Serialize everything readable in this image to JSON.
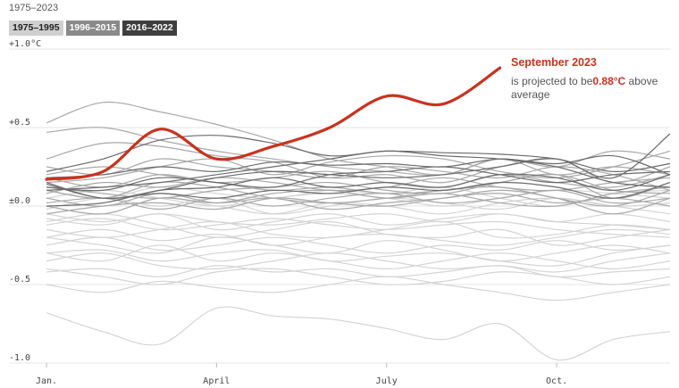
{
  "header": {
    "range_label": "1975–2023"
  },
  "legend": [
    {
      "label": "1975–1995",
      "bg": "#cfcfcf",
      "fg": "#222222"
    },
    {
      "label": "1996–2015",
      "bg": "#8a8a8a",
      "fg": "#ffffff"
    },
    {
      "label": "2016–2022",
      "bg": "#3e3e3e",
      "fg": "#ffffff"
    }
  ],
  "annotation": {
    "title": "September 2023",
    "line1_prefix": "is projected to be",
    "value": "0.88°C",
    "line1_suffix": " above",
    "line2": "average"
  },
  "colors": {
    "highlight": "#c8331f",
    "era1": "#d4d4d4",
    "era2": "#a8a8a8",
    "era3": "#6a6a6a",
    "grid": "#e6e6e6"
  },
  "chart_data": {
    "type": "line",
    "title": "",
    "xlabel": "",
    "ylabel": "",
    "x_ticks": [
      {
        "label": "Jan.",
        "month": 0
      },
      {
        "label": "April",
        "month": 3
      },
      {
        "label": "July",
        "month": 6
      },
      {
        "label": "Oct.",
        "month": 9
      }
    ],
    "y_ticks": [
      {
        "label": "+1.0°C",
        "value": 1.0
      },
      {
        "label": "+0.5",
        "value": 0.5
      },
      {
        "label": "±0.0",
        "value": 0.0
      },
      {
        "label": "-0.5",
        "value": -0.5
      },
      {
        "label": "-1.0",
        "value": -1.0
      }
    ],
    "xlim": [
      0,
      11
    ],
    "ylim": [
      -1.0,
      1.0
    ],
    "grid": true,
    "highlight_series": {
      "name": "2023",
      "values": [
        0.17,
        0.22,
        0.49,
        0.3,
        0.38,
        0.5,
        0.7,
        0.65,
        0.88
      ]
    },
    "series": [
      {
        "group": 3,
        "values": [
          0.22,
          0.3,
          0.42,
          0.45,
          0.4,
          0.32,
          0.35,
          0.34,
          0.33,
          0.3,
          0.22,
          0.27
        ]
      },
      {
        "group": 3,
        "values": [
          0.18,
          0.2,
          0.25,
          0.22,
          0.28,
          0.26,
          0.27,
          0.25,
          0.3,
          0.27,
          0.32,
          0.2
        ]
      },
      {
        "group": 3,
        "values": [
          0.15,
          0.05,
          0.1,
          0.18,
          0.22,
          0.2,
          0.18,
          0.2,
          0.25,
          0.3,
          0.18,
          0.46
        ]
      },
      {
        "group": 3,
        "values": [
          0.0,
          0.02,
          0.1,
          0.12,
          0.18,
          0.12,
          0.15,
          0.12,
          0.2,
          0.18,
          0.1,
          0.2
        ]
      },
      {
        "group": 3,
        "values": [
          0.1,
          0.12,
          0.15,
          0.2,
          0.25,
          0.3,
          0.35,
          0.32,
          0.3,
          0.25,
          0.15,
          0.12
        ]
      },
      {
        "group": 3,
        "values": [
          0.12,
          0.1,
          0.18,
          0.15,
          0.12,
          0.2,
          0.22,
          0.25,
          0.2,
          0.15,
          0.2,
          0.22
        ]
      },
      {
        "group": 3,
        "values": [
          0.14,
          0.05,
          0.08,
          0.05,
          0.1,
          0.08,
          0.12,
          0.1,
          0.15,
          0.12,
          0.05,
          0.15
        ]
      },
      {
        "group": 2,
        "values": [
          0.53,
          0.66,
          0.6,
          0.52,
          0.42,
          0.3,
          0.25,
          0.2,
          0.3,
          0.2,
          0.25,
          0.2
        ]
      },
      {
        "group": 2,
        "values": [
          0.47,
          0.5,
          0.42,
          0.35,
          0.3,
          0.25,
          0.22,
          0.2,
          0.3,
          0.25,
          0.35,
          0.3
        ]
      },
      {
        "group": 2,
        "values": [
          0.3,
          0.4,
          0.38,
          0.32,
          0.28,
          0.18,
          0.2,
          0.15,
          0.25,
          0.3,
          0.15,
          0.25
        ]
      },
      {
        "group": 2,
        "values": [
          0.2,
          0.25,
          0.2,
          0.15,
          0.1,
          0.12,
          0.08,
          0.1,
          0.15,
          0.2,
          0.05,
          0.15
        ]
      },
      {
        "group": 2,
        "values": [
          0.1,
          0.05,
          0.15,
          0.12,
          0.05,
          0.02,
          0.05,
          0.1,
          0.12,
          0.05,
          0.0,
          0.1
        ]
      },
      {
        "group": 2,
        "values": [
          0.05,
          0.0,
          0.08,
          0.02,
          0.05,
          -0.02,
          0.02,
          0.05,
          0.1,
          0.05,
          -0.05,
          0.05
        ]
      },
      {
        "group": 2,
        "values": [
          0.15,
          0.18,
          0.25,
          0.3,
          0.2,
          0.28,
          0.32,
          0.3,
          0.22,
          0.18,
          0.25,
          0.35
        ]
      },
      {
        "group": 2,
        "values": [
          0.0,
          -0.05,
          0.05,
          0.02,
          0.08,
          0.1,
          0.05,
          0.08,
          0.02,
          0.0,
          0.08,
          0.12
        ]
      },
      {
        "group": 2,
        "values": [
          0.25,
          0.2,
          0.3,
          0.25,
          0.22,
          0.18,
          0.25,
          0.22,
          0.18,
          0.25,
          0.2,
          0.1
        ]
      },
      {
        "group": 2,
        "values": [
          0.18,
          0.12,
          0.2,
          0.15,
          0.18,
          0.22,
          0.15,
          0.12,
          0.2,
          0.15,
          0.12,
          0.2
        ]
      },
      {
        "group": 2,
        "values": [
          -0.05,
          0.0,
          0.02,
          -0.02,
          0.05,
          0.02,
          0.0,
          0.05,
          0.08,
          0.02,
          0.05,
          0.0
        ]
      },
      {
        "group": 2,
        "values": [
          0.08,
          0.15,
          0.12,
          0.18,
          0.15,
          0.1,
          0.12,
          0.18,
          0.12,
          0.1,
          0.15,
          0.18
        ]
      },
      {
        "group": 2,
        "values": [
          0.12,
          0.08,
          0.05,
          0.1,
          0.12,
          0.15,
          0.1,
          0.08,
          0.15,
          0.2,
          0.1,
          0.08
        ]
      },
      {
        "group": 2,
        "values": [
          0.02,
          0.05,
          -0.02,
          0.05,
          0.0,
          0.05,
          0.08,
          0.02,
          0.05,
          0.1,
          0.02,
          0.05
        ]
      },
      {
        "group": 1,
        "values": [
          -0.1,
          -0.05,
          -0.12,
          -0.2,
          -0.15,
          -0.1,
          -0.18,
          -0.2,
          -0.15,
          -0.25,
          -0.2,
          -0.15
        ]
      },
      {
        "group": 1,
        "values": [
          -0.2,
          -0.25,
          -0.3,
          -0.2,
          -0.25,
          -0.3,
          -0.22,
          -0.28,
          -0.35,
          -0.3,
          -0.25,
          -0.3
        ]
      },
      {
        "group": 1,
        "values": [
          -0.3,
          -0.35,
          -0.25,
          -0.35,
          -0.3,
          -0.35,
          -0.4,
          -0.35,
          -0.3,
          -0.35,
          -0.4,
          -0.35
        ]
      },
      {
        "group": 1,
        "values": [
          -0.4,
          -0.45,
          -0.5,
          -0.42,
          -0.4,
          -0.45,
          -0.5,
          -0.48,
          -0.42,
          -0.45,
          -0.5,
          -0.45
        ]
      },
      {
        "group": 1,
        "values": [
          -0.68,
          -0.8,
          -0.88,
          -0.65,
          -0.7,
          -0.72,
          -0.78,
          -0.85,
          -0.75,
          -0.98,
          -0.85,
          -0.8
        ]
      },
      {
        "group": 1,
        "values": [
          0.0,
          -0.05,
          0.05,
          0.0,
          -0.05,
          0.02,
          0.0,
          -0.05,
          0.02,
          0.05,
          0.0,
          -0.05
        ]
      },
      {
        "group": 1,
        "values": [
          -0.05,
          -0.1,
          -0.05,
          -0.1,
          -0.12,
          -0.08,
          -0.05,
          -0.1,
          -0.05,
          -0.1,
          -0.05,
          -0.1
        ]
      },
      {
        "group": 1,
        "values": [
          -0.15,
          -0.2,
          -0.15,
          -0.1,
          -0.18,
          -0.2,
          -0.15,
          -0.1,
          -0.2,
          -0.18,
          -0.12,
          -0.15
        ]
      },
      {
        "group": 1,
        "values": [
          -0.25,
          -0.2,
          -0.28,
          -0.25,
          -0.2,
          -0.25,
          -0.3,
          -0.25,
          -0.28,
          -0.22,
          -0.28,
          -0.25
        ]
      },
      {
        "group": 1,
        "values": [
          -0.35,
          -0.3,
          -0.38,
          -0.4,
          -0.35,
          -0.3,
          -0.35,
          -0.4,
          -0.38,
          -0.42,
          -0.35,
          -0.3
        ]
      },
      {
        "group": 1,
        "values": [
          -0.5,
          -0.55,
          -0.48,
          -0.52,
          -0.55,
          -0.5,
          -0.45,
          -0.5,
          -0.55,
          -0.6,
          -0.55,
          -0.5
        ]
      },
      {
        "group": 1,
        "values": [
          0.1,
          0.05,
          0.12,
          0.08,
          0.05,
          0.1,
          0.08,
          0.12,
          0.05,
          0.0,
          0.08,
          0.1
        ]
      },
      {
        "group": 1,
        "values": [
          -0.02,
          0.05,
          0.0,
          0.05,
          -0.05,
          0.0,
          0.05,
          0.02,
          -0.02,
          0.05,
          0.0,
          0.02
        ]
      },
      {
        "group": 1,
        "values": [
          -0.12,
          -0.08,
          -0.15,
          -0.12,
          -0.08,
          -0.12,
          -0.15,
          -0.12,
          -0.1,
          -0.15,
          -0.18,
          -0.2
        ]
      },
      {
        "group": 1,
        "values": [
          -0.2,
          -0.15,
          -0.22,
          -0.18,
          -0.25,
          -0.2,
          -0.18,
          -0.22,
          -0.25,
          -0.2,
          -0.15,
          -0.18
        ]
      },
      {
        "group": 1,
        "values": [
          -0.08,
          -0.12,
          -0.05,
          -0.15,
          -0.1,
          -0.05,
          -0.12,
          -0.08,
          -0.05,
          -0.1,
          -0.12,
          -0.15
        ]
      },
      {
        "group": 1,
        "values": [
          -0.3,
          -0.28,
          -0.35,
          -0.3,
          -0.28,
          -0.35,
          -0.32,
          -0.3,
          -0.35,
          -0.38,
          -0.3,
          -0.25
        ]
      },
      {
        "group": 1,
        "values": [
          0.05,
          0.1,
          0.05,
          0.0,
          0.05,
          0.08,
          0.05,
          0.0,
          0.05,
          0.1,
          0.08,
          0.05
        ]
      },
      {
        "group": 1,
        "values": [
          -0.42,
          -0.4,
          -0.45,
          -0.38,
          -0.42,
          -0.4,
          -0.45,
          -0.42,
          -0.38,
          -0.45,
          -0.42,
          -0.4
        ]
      }
    ]
  }
}
